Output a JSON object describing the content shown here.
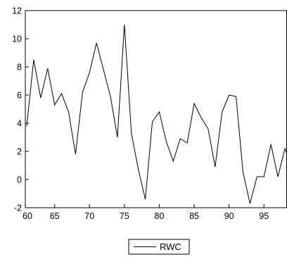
{
  "chart_data": {
    "type": "line",
    "title": "",
    "xlabel": "",
    "ylabel": "",
    "xlim": [
      60.8,
      98.3
    ],
    "ylim": [
      -2,
      12
    ],
    "xticks": [
      60,
      65,
      70,
      75,
      80,
      85,
      90,
      95
    ],
    "yticks": [
      -2,
      0,
      2,
      4,
      6,
      8,
      10,
      12
    ],
    "grid": false,
    "legend": "bottom-center",
    "series": [
      {
        "name": "RWC",
        "color": "#000000",
        "x": [
          61,
          62,
          63,
          64,
          65,
          66,
          67,
          68,
          69,
          70,
          71,
          72,
          73,
          74,
          75,
          76,
          77,
          78,
          79,
          80,
          81,
          82,
          83,
          84,
          85,
          86,
          87,
          88,
          89,
          90,
          91,
          92,
          93,
          94,
          95,
          96,
          97,
          98,
          99
        ],
        "y": [
          3.8,
          8.5,
          5.8,
          7.9,
          5.3,
          6.1,
          4.8,
          1.8,
          6.2,
          7.6,
          9.7,
          7.8,
          5.9,
          3.0,
          11.0,
          3.3,
          0.7,
          -1.4,
          4.1,
          4.8,
          2.7,
          1.3,
          2.9,
          2.6,
          5.4,
          4.4,
          3.6,
          0.9,
          4.8,
          6.0,
          5.9,
          0.5,
          -1.7,
          0.2,
          0.2,
          2.5,
          0.2,
          2.2,
          1.8
        ]
      }
    ]
  }
}
